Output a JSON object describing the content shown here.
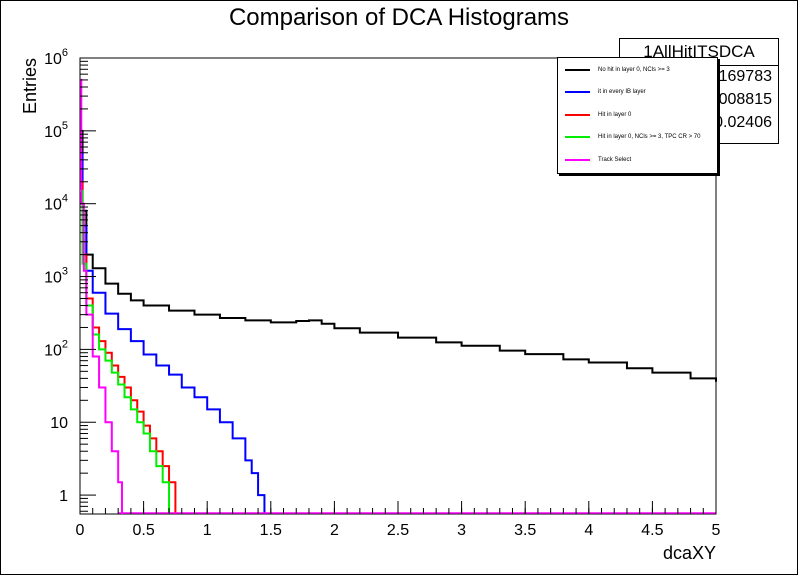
{
  "chart_data": {
    "type": "line",
    "title": "Comparison of DCA Histograms",
    "xlabel": "dcaXY",
    "ylabel": "Entries",
    "xlim": [
      0,
      5
    ],
    "ylim": [
      0.55,
      1000000
    ],
    "yscale": "log",
    "grid": false,
    "legend_position": "top-right",
    "x_ticks": [
      "0",
      "0.5",
      "1",
      "1.5",
      "2",
      "2.5",
      "3",
      "3.5",
      "4",
      "4.5",
      "5"
    ],
    "y_ticks": [
      {
        "value": 1,
        "base": "1",
        "exp": ""
      },
      {
        "value": 10,
        "base": "10",
        "exp": ""
      },
      {
        "value": 100,
        "base": "10",
        "exp": "2"
      },
      {
        "value": 1000,
        "base": "10",
        "exp": "3"
      },
      {
        "value": 10000,
        "base": "10",
        "exp": "4"
      },
      {
        "value": 100000,
        "base": "10",
        "exp": "5"
      },
      {
        "value": 1000000,
        "base": "10",
        "exp": "6"
      }
    ],
    "series": [
      {
        "name": "No hit in layer 0, NCls >= 3",
        "color": "#000000",
        "points": [
          [
            0.0,
            100000
          ],
          [
            0.02,
            8000
          ],
          [
            0.05,
            2000
          ],
          [
            0.1,
            1300
          ],
          [
            0.2,
            800
          ],
          [
            0.3,
            580
          ],
          [
            0.4,
            470
          ],
          [
            0.5,
            400
          ],
          [
            0.7,
            340
          ],
          [
            0.9,
            300
          ],
          [
            1.1,
            270
          ],
          [
            1.3,
            250
          ],
          [
            1.5,
            235
          ],
          [
            1.7,
            245
          ],
          [
            1.8,
            250
          ],
          [
            1.9,
            225
          ],
          [
            2.0,
            195
          ],
          [
            2.2,
            170
          ],
          [
            2.5,
            145
          ],
          [
            2.8,
            125
          ],
          [
            3.0,
            112
          ],
          [
            3.3,
            96
          ],
          [
            3.5,
            86
          ],
          [
            3.8,
            73
          ],
          [
            4.0,
            66
          ],
          [
            4.3,
            55
          ],
          [
            4.5,
            48
          ],
          [
            4.8,
            40
          ],
          [
            5.0,
            36
          ]
        ]
      },
      {
        "name": "it in every IB layer",
        "color": "#0000ff",
        "points": [
          [
            0.0,
            50000
          ],
          [
            0.02,
            5000
          ],
          [
            0.05,
            1200
          ],
          [
            0.1,
            600
          ],
          [
            0.2,
            310
          ],
          [
            0.3,
            190
          ],
          [
            0.4,
            130
          ],
          [
            0.5,
            85
          ],
          [
            0.6,
            60
          ],
          [
            0.7,
            45
          ],
          [
            0.8,
            30
          ],
          [
            0.9,
            22
          ],
          [
            1.0,
            15
          ],
          [
            1.1,
            10
          ],
          [
            1.2,
            6
          ],
          [
            1.3,
            3
          ],
          [
            1.35,
            2
          ],
          [
            1.4,
            1
          ],
          [
            1.45,
            0.55
          ]
        ]
      },
      {
        "name": "Hit in layer 0",
        "color": "#ff0000",
        "points": [
          [
            0.0,
            20000
          ],
          [
            0.02,
            2000
          ],
          [
            0.05,
            500
          ],
          [
            0.1,
            200
          ],
          [
            0.15,
            130
          ],
          [
            0.2,
            90
          ],
          [
            0.25,
            60
          ],
          [
            0.3,
            42
          ],
          [
            0.35,
            30
          ],
          [
            0.4,
            20
          ],
          [
            0.45,
            14
          ],
          [
            0.5,
            9
          ],
          [
            0.55,
            6
          ],
          [
            0.6,
            4
          ],
          [
            0.65,
            2.5
          ],
          [
            0.7,
            1.5
          ],
          [
            0.75,
            0.55
          ]
        ]
      },
      {
        "name": "Hit in layer 0, NCls >= 3, TPC CR > 70",
        "color": "#00ee00",
        "points": [
          [
            0.0,
            15000
          ],
          [
            0.02,
            1500
          ],
          [
            0.05,
            400
          ],
          [
            0.1,
            160
          ],
          [
            0.15,
            100
          ],
          [
            0.2,
            70
          ],
          [
            0.25,
            48
          ],
          [
            0.3,
            33
          ],
          [
            0.35,
            22
          ],
          [
            0.4,
            15
          ],
          [
            0.45,
            10
          ],
          [
            0.5,
            7
          ],
          [
            0.55,
            4
          ],
          [
            0.6,
            2.5
          ],
          [
            0.65,
            1.5
          ],
          [
            0.7,
            0.55
          ]
        ]
      },
      {
        "name": "Track Select",
        "color": "#ff00ff",
        "points": [
          [
            0.0,
            500000
          ],
          [
            0.01,
            10000
          ],
          [
            0.03,
            1200
          ],
          [
            0.05,
            300
          ],
          [
            0.1,
            80
          ],
          [
            0.15,
            30
          ],
          [
            0.2,
            10
          ],
          [
            0.25,
            4
          ],
          [
            0.3,
            1.5
          ],
          [
            0.33,
            0.55
          ]
        ]
      }
    ]
  },
  "stats": {
    "title": "1AllHitITSDCA",
    "lines": [
      "7169783",
      ".008815",
      "0.02406"
    ]
  }
}
